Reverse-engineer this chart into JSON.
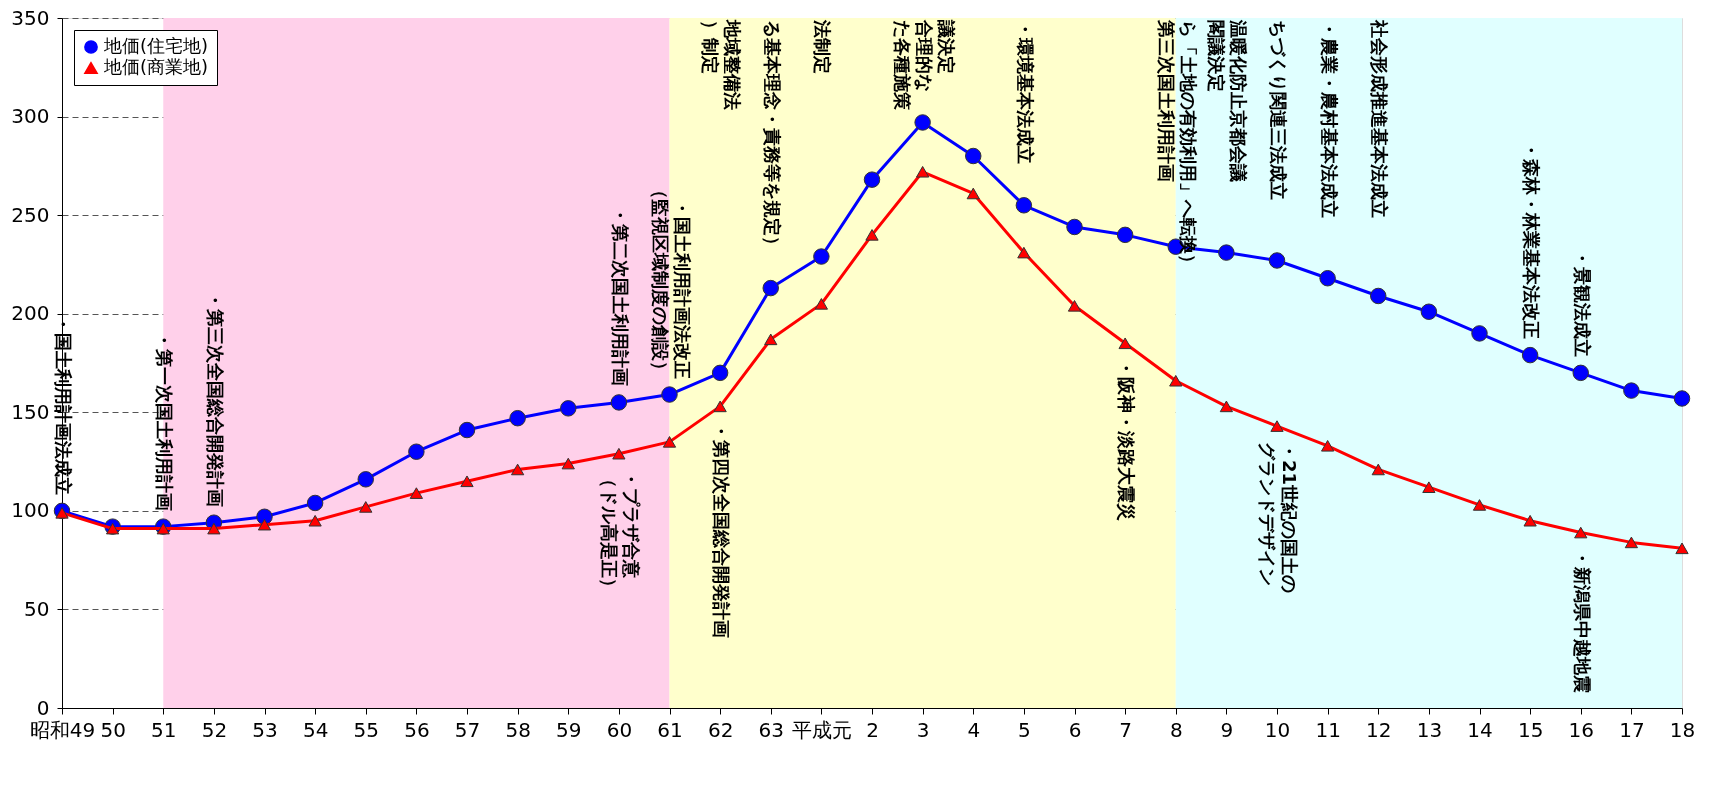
{
  "chart_data": {
    "type": "line",
    "categories": [
      "昭和49",
      "50",
      "51",
      "52",
      "53",
      "54",
      "55",
      "56",
      "57",
      "58",
      "59",
      "60",
      "61",
      "62",
      "63",
      "平成元",
      "2",
      "3",
      "4",
      "5",
      "6",
      "7",
      "8",
      "9",
      "10",
      "11",
      "12",
      "13",
      "14",
      "15",
      "16",
      "17",
      "18"
    ],
    "series": [
      {
        "name": "地価(住宅地)",
        "color": "#0000ff",
        "marker": "circle",
        "values": [
          100,
          92,
          92,
          94,
          97,
          104,
          116,
          130,
          141,
          147,
          152,
          155,
          159,
          170,
          213,
          229,
          268,
          297,
          280,
          255,
          244,
          240,
          234,
          231,
          227,
          218,
          209,
          201,
          190,
          179,
          170,
          161,
          157
        ]
      },
      {
        "name": "地価(商業地)",
        "color": "#ff0000",
        "marker": "triangle",
        "values": [
          99,
          91,
          91,
          91,
          93,
          95,
          102,
          109,
          115,
          121,
          124,
          129,
          135,
          153,
          187,
          205,
          240,
          272,
          261,
          231,
          204,
          185,
          166,
          153,
          143,
          133,
          121,
          112,
          103,
          95,
          89,
          84,
          81
        ]
      }
    ],
    "ylim": [
      0,
      350
    ],
    "yticks": [
      0,
      50,
      100,
      150,
      200,
      250,
      300,
      350
    ],
    "grid": "y",
    "legend": "top left",
    "bands": [
      {
        "axis": "x",
        "from": "51",
        "to": "61",
        "color": "#ffd0ea"
      },
      {
        "axis": "x",
        "from": "61",
        "to": "8",
        "color": "#ffffcc"
      },
      {
        "axis": "x",
        "from": "8",
        "to": "18",
        "color": "#e0ffff"
      }
    ],
    "annotations": [
      {
        "text": "・国土利用計画法成立",
        "x": "昭和49",
        "y": 100
      },
      {
        "text": "・第一次国土利用計画",
        "x": "51",
        "y": 92
      },
      {
        "text": "・第三次全国総合開発計画",
        "x": "52",
        "y": 94
      },
      {
        "text": "・第二次国土利用計画",
        "x": "60",
        "y": 155
      },
      {
        "text": "・国土利用計画法改正",
        "x": "61",
        "y": 159
      },
      {
        "text": "（監視区域制度の創設）",
        "x": "61",
        "y": 159
      },
      {
        "text": "・プラザ合意",
        "x": "60",
        "y": 129
      },
      {
        "text": "（ドル高是正）",
        "x": "60",
        "y": 129
      },
      {
        "text": "・第四次全国総合開発計画",
        "x": "62",
        "y": 153
      },
      {
        "text": "地域整備法",
        "x": "62",
        "y": 350
      },
      {
        "text": "）制定",
        "x": "62",
        "y": 350
      },
      {
        "text": "る基本理念・責務等を規定）",
        "x": "63",
        "y": 350
      },
      {
        "text": "法制定",
        "x": "平成元",
        "y": 350
      },
      {
        "text": "議決定",
        "x": "3",
        "y": 350
      },
      {
        "text": "合理的な",
        "x": "3",
        "y": 350
      },
      {
        "text": "た各種施策",
        "x": "3",
        "y": 350
      },
      {
        "text": "・環境基本法成立",
        "x": "5",
        "y": 350
      },
      {
        "text": "・阪神・淡路大震災",
        "x": "7",
        "y": 185
      },
      {
        "text": "ら「土地の有効利用」へ転換）",
        "x": "8",
        "y": 350
      },
      {
        "text": "第三次国土利用計画",
        "x": "8",
        "y": 350
      },
      {
        "text": "温暖化防止京都会議",
        "x": "9",
        "y": 350
      },
      {
        "text": "閣議決定",
        "x": "9",
        "y": 350
      },
      {
        "text": "ちづくり関連三法成立",
        "x": "10",
        "y": 350
      },
      {
        "text": "・21世紀の国土の",
        "x": "10",
        "y": 143
      },
      {
        "text": "グランドデザイン",
        "x": "10",
        "y": 143
      },
      {
        "text": "・農業・農村基本法成立",
        "x": "11",
        "y": 350
      },
      {
        "text": "社会形成推進基本法成立",
        "x": "12",
        "y": 350
      },
      {
        "text": "・森林・林業基本法改正",
        "x": "15",
        "y": 179
      },
      {
        "text": "・景観法成立",
        "x": "16",
        "y": 170
      },
      {
        "text": "・新潟県中越地震",
        "x": "16",
        "y": 89
      }
    ]
  }
}
